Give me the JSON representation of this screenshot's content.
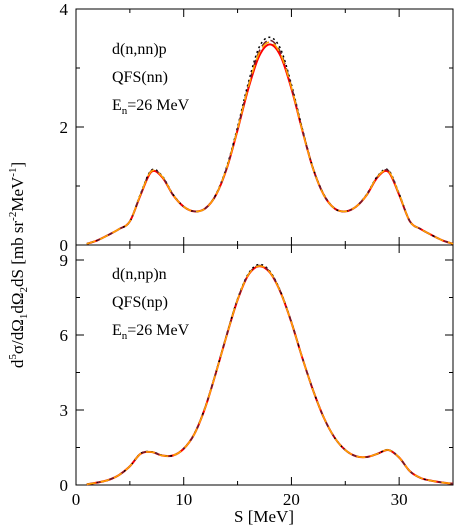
{
  "chart_data": {
    "type": "line",
    "xlabel": "S [MeV]",
    "ylabel_parts": {
      "d": "d",
      "sup5": "5",
      "sigma": "σ/dΩ",
      "sub1": "1",
      "dOmega": "dΩ",
      "sub2": "2",
      "dS": "dS [mb sr",
      "supm2": "-2",
      "mev": "MeV",
      "supm1": "-1",
      "close": "]"
    },
    "xlim": [
      0,
      35
    ],
    "xticks": [
      0,
      10,
      20,
      30
    ],
    "xtick_labels": [
      "0",
      "10",
      "20",
      "30"
    ],
    "panels": [
      {
        "ylim": [
          0,
          4
        ],
        "yticks": [
          0,
          2,
          4
        ],
        "ytick_labels": [
          "0",
          "2",
          "4"
        ],
        "annotations": {
          "reaction": "d(n,nn)p",
          "config": "QFS(nn)",
          "energy_prefix": "E",
          "energy_sub": "n",
          "energy_value": "=26 MeV"
        },
        "series": [
          {
            "color": "#ff0000",
            "dash": "",
            "width": 2.0,
            "x": [
              1,
              2,
              3,
              4,
              5,
              6,
              7,
              8,
              9,
              10,
              11,
              12,
              13,
              14,
              15,
              16,
              17,
              18,
              19,
              20,
              21,
              22,
              23,
              24,
              25,
              26,
              27,
              28,
              29,
              30,
              31,
              32,
              33,
              34,
              35
            ],
            "y": [
              0.02,
              0.08,
              0.17,
              0.27,
              0.4,
              0.85,
              1.24,
              1.15,
              0.85,
              0.65,
              0.57,
              0.62,
              0.85,
              1.3,
              1.95,
              2.65,
              3.2,
              3.4,
              3.2,
              2.65,
              1.95,
              1.3,
              0.85,
              0.62,
              0.57,
              0.65,
              0.85,
              1.15,
              1.24,
              0.85,
              0.4,
              0.27,
              0.17,
              0.08,
              0.02
            ]
          },
          {
            "color": "#000000",
            "dash": "2,3",
            "width": 1.5,
            "x": [
              1,
              2,
              3,
              4,
              5,
              6,
              7,
              8,
              9,
              10,
              11,
              12,
              13,
              14,
              15,
              16,
              17,
              18,
              19,
              20,
              21,
              22,
              23,
              24,
              25,
              26,
              27,
              28,
              29,
              30,
              31,
              32,
              33,
              34,
              35
            ],
            "y": [
              0.02,
              0.08,
              0.17,
              0.27,
              0.4,
              0.87,
              1.27,
              1.17,
              0.86,
              0.65,
              0.57,
              0.62,
              0.86,
              1.33,
              2.0,
              2.75,
              3.35,
              3.52,
              3.32,
              2.72,
              1.98,
              1.31,
              0.86,
              0.62,
              0.57,
              0.65,
              0.86,
              1.17,
              1.27,
              0.87,
              0.4,
              0.27,
              0.17,
              0.08,
              0.02
            ]
          },
          {
            "color": "#6b1e2e",
            "dash": "7,4",
            "width": 1.5,
            "x": [
              1,
              2,
              3,
              4,
              5,
              6,
              7,
              8,
              9,
              10,
              11,
              12,
              13,
              14,
              15,
              16,
              17,
              18,
              19,
              20,
              21,
              22,
              23,
              24,
              25,
              26,
              27,
              28,
              29,
              30,
              31,
              32,
              33,
              34,
              35
            ],
            "y": [
              0.02,
              0.08,
              0.17,
              0.27,
              0.4,
              0.86,
              1.26,
              1.16,
              0.85,
              0.65,
              0.57,
              0.62,
              0.85,
              1.31,
              1.97,
              2.7,
              3.28,
              3.47,
              3.26,
              2.69,
              1.96,
              1.3,
              0.85,
              0.62,
              0.57,
              0.65,
              0.85,
              1.16,
              1.26,
              0.86,
              0.4,
              0.27,
              0.17,
              0.08,
              0.02
            ]
          },
          {
            "color": "#ffa500",
            "dash": "9,5",
            "width": 1.5,
            "x": [
              1,
              2,
              3,
              4,
              5,
              6,
              7,
              8,
              9,
              10,
              11,
              12,
              13,
              14,
              15,
              16,
              17,
              18,
              19,
              20,
              21,
              22,
              23,
              24,
              25,
              26,
              27,
              28,
              29,
              30,
              31,
              32,
              33,
              34,
              35
            ],
            "y": [
              0.02,
              0.08,
              0.17,
              0.27,
              0.4,
              0.86,
              1.25,
              1.16,
              0.85,
              0.65,
              0.57,
              0.62,
              0.85,
              1.31,
              1.96,
              2.68,
              3.25,
              3.44,
              3.23,
              2.67,
              1.95,
              1.3,
              0.85,
              0.62,
              0.57,
              0.65,
              0.85,
              1.16,
              1.25,
              0.86,
              0.4,
              0.27,
              0.17,
              0.08,
              0.02
            ]
          }
        ]
      },
      {
        "ylim": [
          0,
          9.6
        ],
        "yticks": [
          0,
          3,
          6,
          9
        ],
        "ytick_labels": [
          "0",
          "3",
          "6",
          "9"
        ],
        "annotations": {
          "reaction": "d(n,np)n",
          "config": "QFS(np)",
          "energy_prefix": "E",
          "energy_sub": "n",
          "energy_value": "=26 MeV"
        },
        "series": [
          {
            "color": "#ff0000",
            "dash": "",
            "width": 2.0,
            "x": [
              1,
              2,
              3,
              4,
              5,
              6,
              7,
              8,
              9,
              10,
              11,
              12,
              13,
              14,
              15,
              16,
              17,
              18,
              19,
              20,
              21,
              22,
              23,
              24,
              25,
              26,
              27,
              28,
              29,
              30,
              31,
              32,
              33,
              34,
              35
            ],
            "y": [
              0.03,
              0.1,
              0.2,
              0.4,
              0.75,
              1.25,
              1.32,
              1.18,
              1.18,
              1.45,
              2.05,
              3.1,
              4.5,
              6.0,
              7.4,
              8.4,
              8.75,
              8.5,
              7.7,
              6.5,
              5.1,
              3.8,
              2.7,
              1.9,
              1.4,
              1.15,
              1.12,
              1.25,
              1.4,
              1.1,
              0.55,
              0.28,
              0.17,
              0.1,
              0.05
            ]
          },
          {
            "color": "#000000",
            "dash": "2,3",
            "width": 1.5,
            "x": [
              1,
              2,
              3,
              4,
              5,
              6,
              7,
              8,
              9,
              10,
              11,
              12,
              13,
              14,
              15,
              16,
              17,
              18,
              19,
              20,
              21,
              22,
              23,
              24,
              25,
              26,
              27,
              28,
              29,
              30,
              31,
              32,
              33,
              34,
              35
            ],
            "y": [
              0.03,
              0.1,
              0.2,
              0.4,
              0.75,
              1.26,
              1.33,
              1.19,
              1.18,
              1.46,
              2.06,
              3.12,
              4.52,
              6.03,
              7.44,
              8.45,
              8.82,
              8.55,
              7.73,
              6.52,
              5.11,
              3.81,
              2.7,
              1.9,
              1.4,
              1.15,
              1.12,
              1.25,
              1.41,
              1.1,
              0.55,
              0.28,
              0.17,
              0.1,
              0.05
            ]
          },
          {
            "color": "#6b1e2e",
            "dash": "7,4",
            "width": 1.5,
            "x": [
              1,
              2,
              3,
              4,
              5,
              6,
              7,
              8,
              9,
              10,
              11,
              12,
              13,
              14,
              15,
              16,
              17,
              18,
              19,
              20,
              21,
              22,
              23,
              24,
              25,
              26,
              27,
              28,
              29,
              30,
              31,
              32,
              33,
              34,
              35
            ],
            "y": [
              0.03,
              0.1,
              0.2,
              0.4,
              0.75,
              1.25,
              1.32,
              1.18,
              1.18,
              1.45,
              2.05,
              3.11,
              4.51,
              6.01,
              7.42,
              8.42,
              8.78,
              8.52,
              7.71,
              6.51,
              5.1,
              3.8,
              2.7,
              1.9,
              1.4,
              1.15,
              1.12,
              1.25,
              1.4,
              1.1,
              0.55,
              0.28,
              0.17,
              0.1,
              0.05
            ]
          },
          {
            "color": "#ffa500",
            "dash": "9,5",
            "width": 1.5,
            "x": [
              1,
              2,
              3,
              4,
              5,
              6,
              7,
              8,
              9,
              10,
              11,
              12,
              13,
              14,
              15,
              16,
              17,
              18,
              19,
              20,
              21,
              22,
              23,
              24,
              25,
              26,
              27,
              28,
              29,
              30,
              31,
              32,
              33,
              34,
              35
            ],
            "y": [
              0.03,
              0.1,
              0.2,
              0.4,
              0.75,
              1.25,
              1.32,
              1.18,
              1.18,
              1.45,
              2.05,
              3.1,
              4.5,
              6.0,
              7.41,
              8.41,
              8.76,
              8.51,
              7.7,
              6.5,
              5.1,
              3.8,
              2.7,
              1.9,
              1.4,
              1.15,
              1.12,
              1.25,
              1.4,
              1.1,
              0.55,
              0.28,
              0.17,
              0.1,
              0.05
            ]
          }
        ]
      }
    ]
  }
}
